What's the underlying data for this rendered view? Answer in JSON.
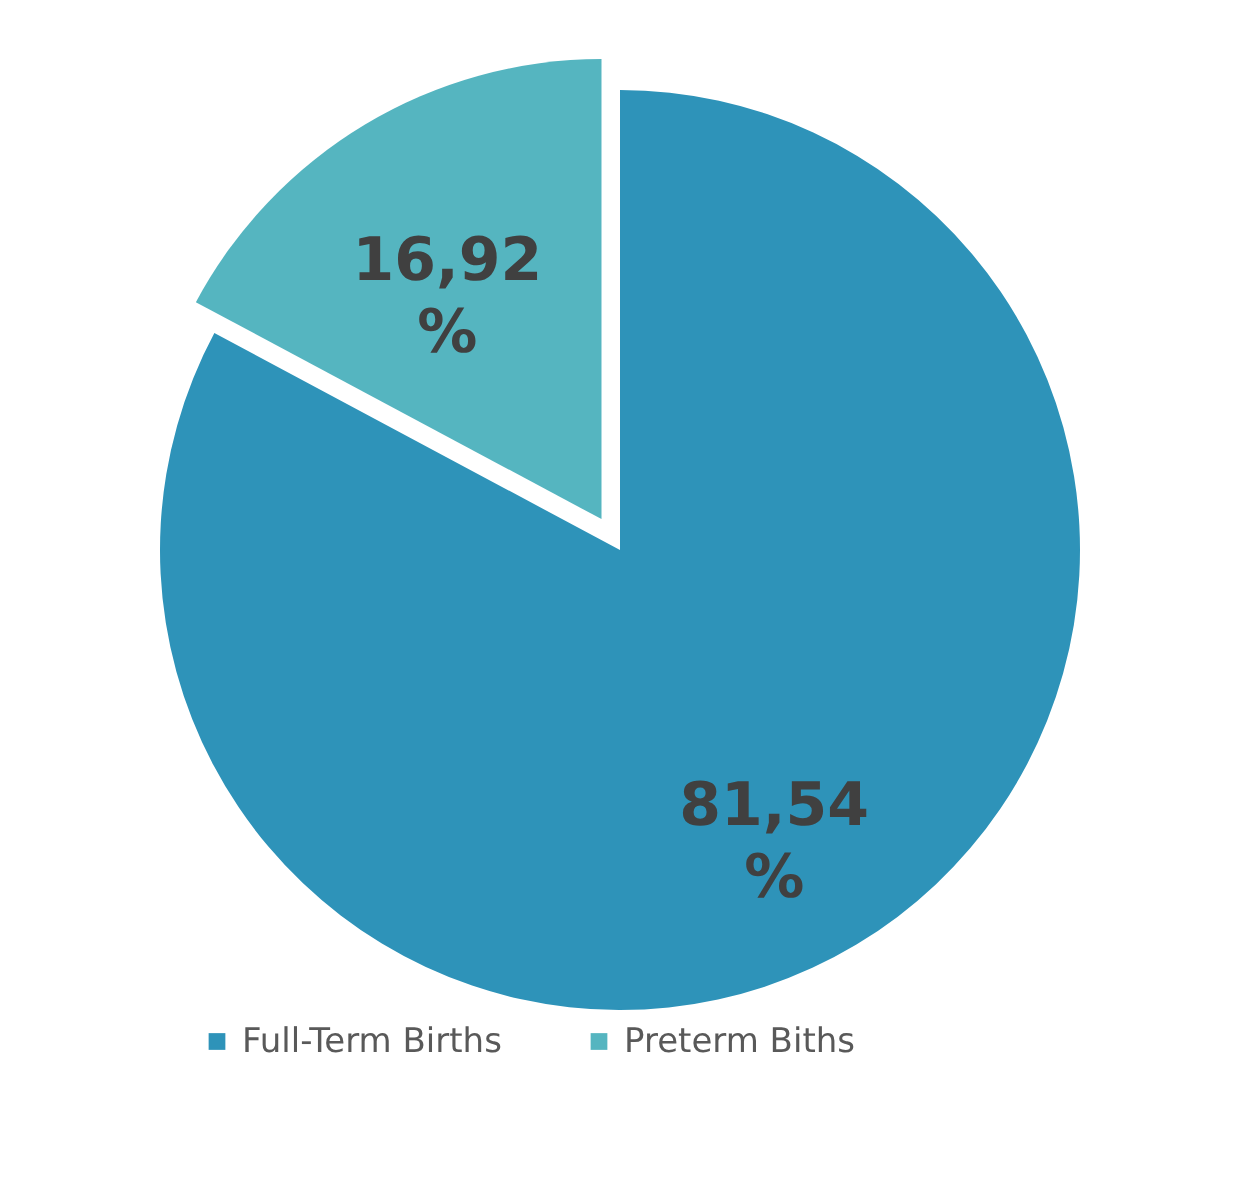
{
  "chart_data": {
    "type": "pie",
    "categories": [
      "Full-Term Births",
      "Preterm Biths"
    ],
    "values": [
      81.54,
      16.92
    ],
    "colors": [
      "#2e93b9",
      "#55b5c0"
    ],
    "value_labels": [
      "81,54 %",
      "16,92 %"
    ],
    "legend": "bottom"
  }
}
